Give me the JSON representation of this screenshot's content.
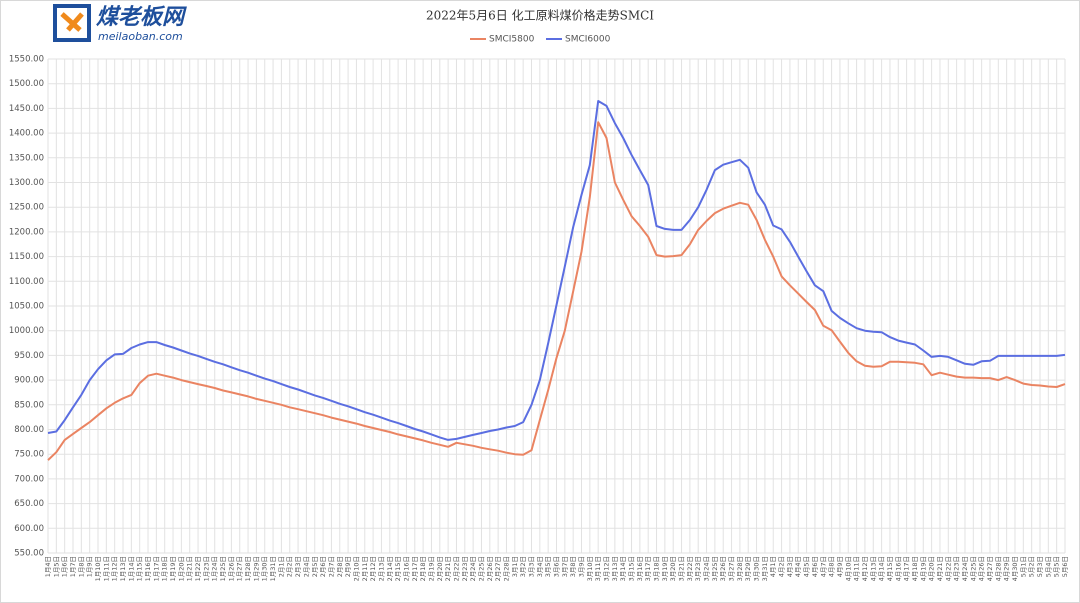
{
  "logo": {
    "name": "煤老板网",
    "url": "meilaoban.com"
  },
  "chart_data": {
    "type": "line",
    "title": "2022年5月6日 化工原料煤价格走势SMCI",
    "categories": [
      "1月4日",
      "1月5日",
      "1月6日",
      "1月7日",
      "1月8日",
      "1月9日",
      "1月10日",
      "1月11日",
      "1月12日",
      "1月13日",
      "1月14日",
      "1月15日",
      "1月16日",
      "1月17日",
      "1月18日",
      "1月19日",
      "1月20日",
      "1月21日",
      "1月22日",
      "1月23日",
      "1月24日",
      "1月25日",
      "1月26日",
      "1月27日",
      "1月28日",
      "1月29日",
      "1月30日",
      "1月31日",
      "2月1日",
      "2月2日",
      "2月3日",
      "2月4日",
      "2月5日",
      "2月6日",
      "2月7日",
      "2月8日",
      "2月9日",
      "2月10日",
      "2月11日",
      "2月12日",
      "2月13日",
      "2月14日",
      "2月15日",
      "2月16日",
      "2月17日",
      "2月18日",
      "2月19日",
      "2月20日",
      "2月21日",
      "2月22日",
      "2月23日",
      "2月24日",
      "2月25日",
      "2月26日",
      "2月27日",
      "2月28日",
      "3月1日",
      "3月2日",
      "3月3日",
      "3月4日",
      "3月5日",
      "3月6日",
      "3月7日",
      "3月8日",
      "3月9日",
      "3月10日",
      "3月11日",
      "3月12日",
      "3月13日",
      "3月14日",
      "3月15日",
      "3月16日",
      "3月17日",
      "3月18日",
      "3月19日",
      "3月20日",
      "3月21日",
      "3月22日",
      "3月23日",
      "3月24日",
      "3月25日",
      "3月26日",
      "3月27日",
      "3月28日",
      "3月29日",
      "3月30日",
      "3月31日",
      "4月1日",
      "4月2日",
      "4月3日",
      "4月4日",
      "4月5日",
      "4月6日",
      "4月7日",
      "4月8日",
      "4月9日",
      "4月10日",
      "4月11日",
      "4月12日",
      "4月13日",
      "4月14日",
      "4月15日",
      "4月16日",
      "4月17日",
      "4月18日",
      "4月19日",
      "4月20日",
      "4月21日",
      "4月22日",
      "4月23日",
      "4月24日",
      "4月25日",
      "4月26日",
      "4月27日",
      "4月28日",
      "4月29日",
      "4月30日",
      "5月1日",
      "5月2日",
      "5月3日",
      "5月4日",
      "5月5日",
      "5月6日"
    ],
    "series": [
      {
        "name": "SMCI5800",
        "color": "#ea8462",
        "values": [
          738,
          754,
          779,
          791,
          803,
          815,
          829,
          843,
          854,
          863,
          870,
          894,
          909,
          913,
          909,
          905,
          900,
          896,
          892,
          888,
          884,
          879,
          875,
          871,
          867,
          862,
          858,
          854,
          850,
          845,
          841,
          837,
          833,
          829,
          824,
          820,
          816,
          812,
          807,
          803,
          799,
          795,
          790,
          786,
          782,
          778,
          773,
          769,
          765,
          773,
          770,
          767,
          763,
          760,
          757,
          753,
          750,
          749,
          758,
          819,
          880,
          945,
          1000,
          1080,
          1160,
          1270,
          1422,
          1390,
          1300,
          1265,
          1232,
          1212,
          1190,
          1153,
          1150,
          1151,
          1153,
          1175,
          1204,
          1222,
          1238,
          1247,
          1253,
          1259,
          1255,
          1224,
          1184,
          1150,
          1110,
          1092,
          1075,
          1058,
          1042,
          1010,
          1001,
          978,
          955,
          938,
          929,
          927,
          928,
          937,
          937,
          936,
          935,
          932,
          910,
          915,
          911,
          907,
          905,
          905,
          904,
          904,
          900,
          906,
          900,
          893,
          890,
          889,
          887,
          886,
          892
        ]
      },
      {
        "name": "SMCI6000",
        "color": "#5b6ee1",
        "values": [
          793,
          796,
          819,
          845,
          870,
          900,
          922,
          940,
          952,
          953,
          965,
          972,
          977,
          977,
          971,
          966,
          960,
          954,
          949,
          943,
          937,
          932,
          926,
          920,
          915,
          909,
          903,
          898,
          892,
          886,
          881,
          875,
          869,
          864,
          858,
          852,
          847,
          841,
          835,
          830,
          824,
          818,
          813,
          807,
          801,
          796,
          790,
          784,
          779,
          781,
          785,
          789,
          793,
          797,
          800,
          804,
          807,
          815,
          850,
          900,
          975,
          1052,
          1130,
          1210,
          1275,
          1335,
          1465,
          1455,
          1420,
          1390,
          1356,
          1325,
          1295,
          1212,
          1206,
          1204,
          1204,
          1224,
          1250,
          1285,
          1325,
          1336,
          1341,
          1346,
          1330,
          1280,
          1255,
          1213,
          1205,
          1180,
          1150,
          1120,
          1092,
          1080,
          1040,
          1026,
          1015,
          1005,
          1000,
          998,
          997,
          987,
          980,
          976,
          972,
          960,
          947,
          949,
          947,
          940,
          933,
          931,
          938,
          939,
          949,
          949,
          949,
          949,
          949,
          949,
          949,
          949,
          951
        ]
      }
    ],
    "ylim": [
      550,
      1550
    ],
    "yticks": [
      {
        "value": 550,
        "label": "550.00"
      },
      {
        "value": 600,
        "label": "600.00"
      },
      {
        "value": 650,
        "label": "650.00"
      },
      {
        "value": 700,
        "label": "700.00"
      },
      {
        "value": 750,
        "label": "750.00"
      },
      {
        "value": 800,
        "label": "800.00"
      },
      {
        "value": 850,
        "label": "850.00"
      },
      {
        "value": 900,
        "label": "900.00"
      },
      {
        "value": 950,
        "label": "950.00"
      },
      {
        "value": 1000,
        "label": "1000.00"
      },
      {
        "value": 1050,
        "label": "1050.00"
      },
      {
        "value": 1100,
        "label": "1100.00"
      },
      {
        "value": 1150,
        "label": "1150.00"
      },
      {
        "value": 1200,
        "label": "1200.00"
      },
      {
        "value": 1250,
        "label": "1250.00"
      },
      {
        "value": 1300,
        "label": "1300.00"
      },
      {
        "value": 1350,
        "label": "1350.00"
      },
      {
        "value": 1400,
        "label": "1400.00"
      },
      {
        "value": 1450,
        "label": "1450.00"
      },
      {
        "value": 1500,
        "label": "1500.00"
      },
      {
        "value": 1550,
        "label": "1550.00"
      }
    ],
    "grid": true,
    "legend": "top"
  }
}
